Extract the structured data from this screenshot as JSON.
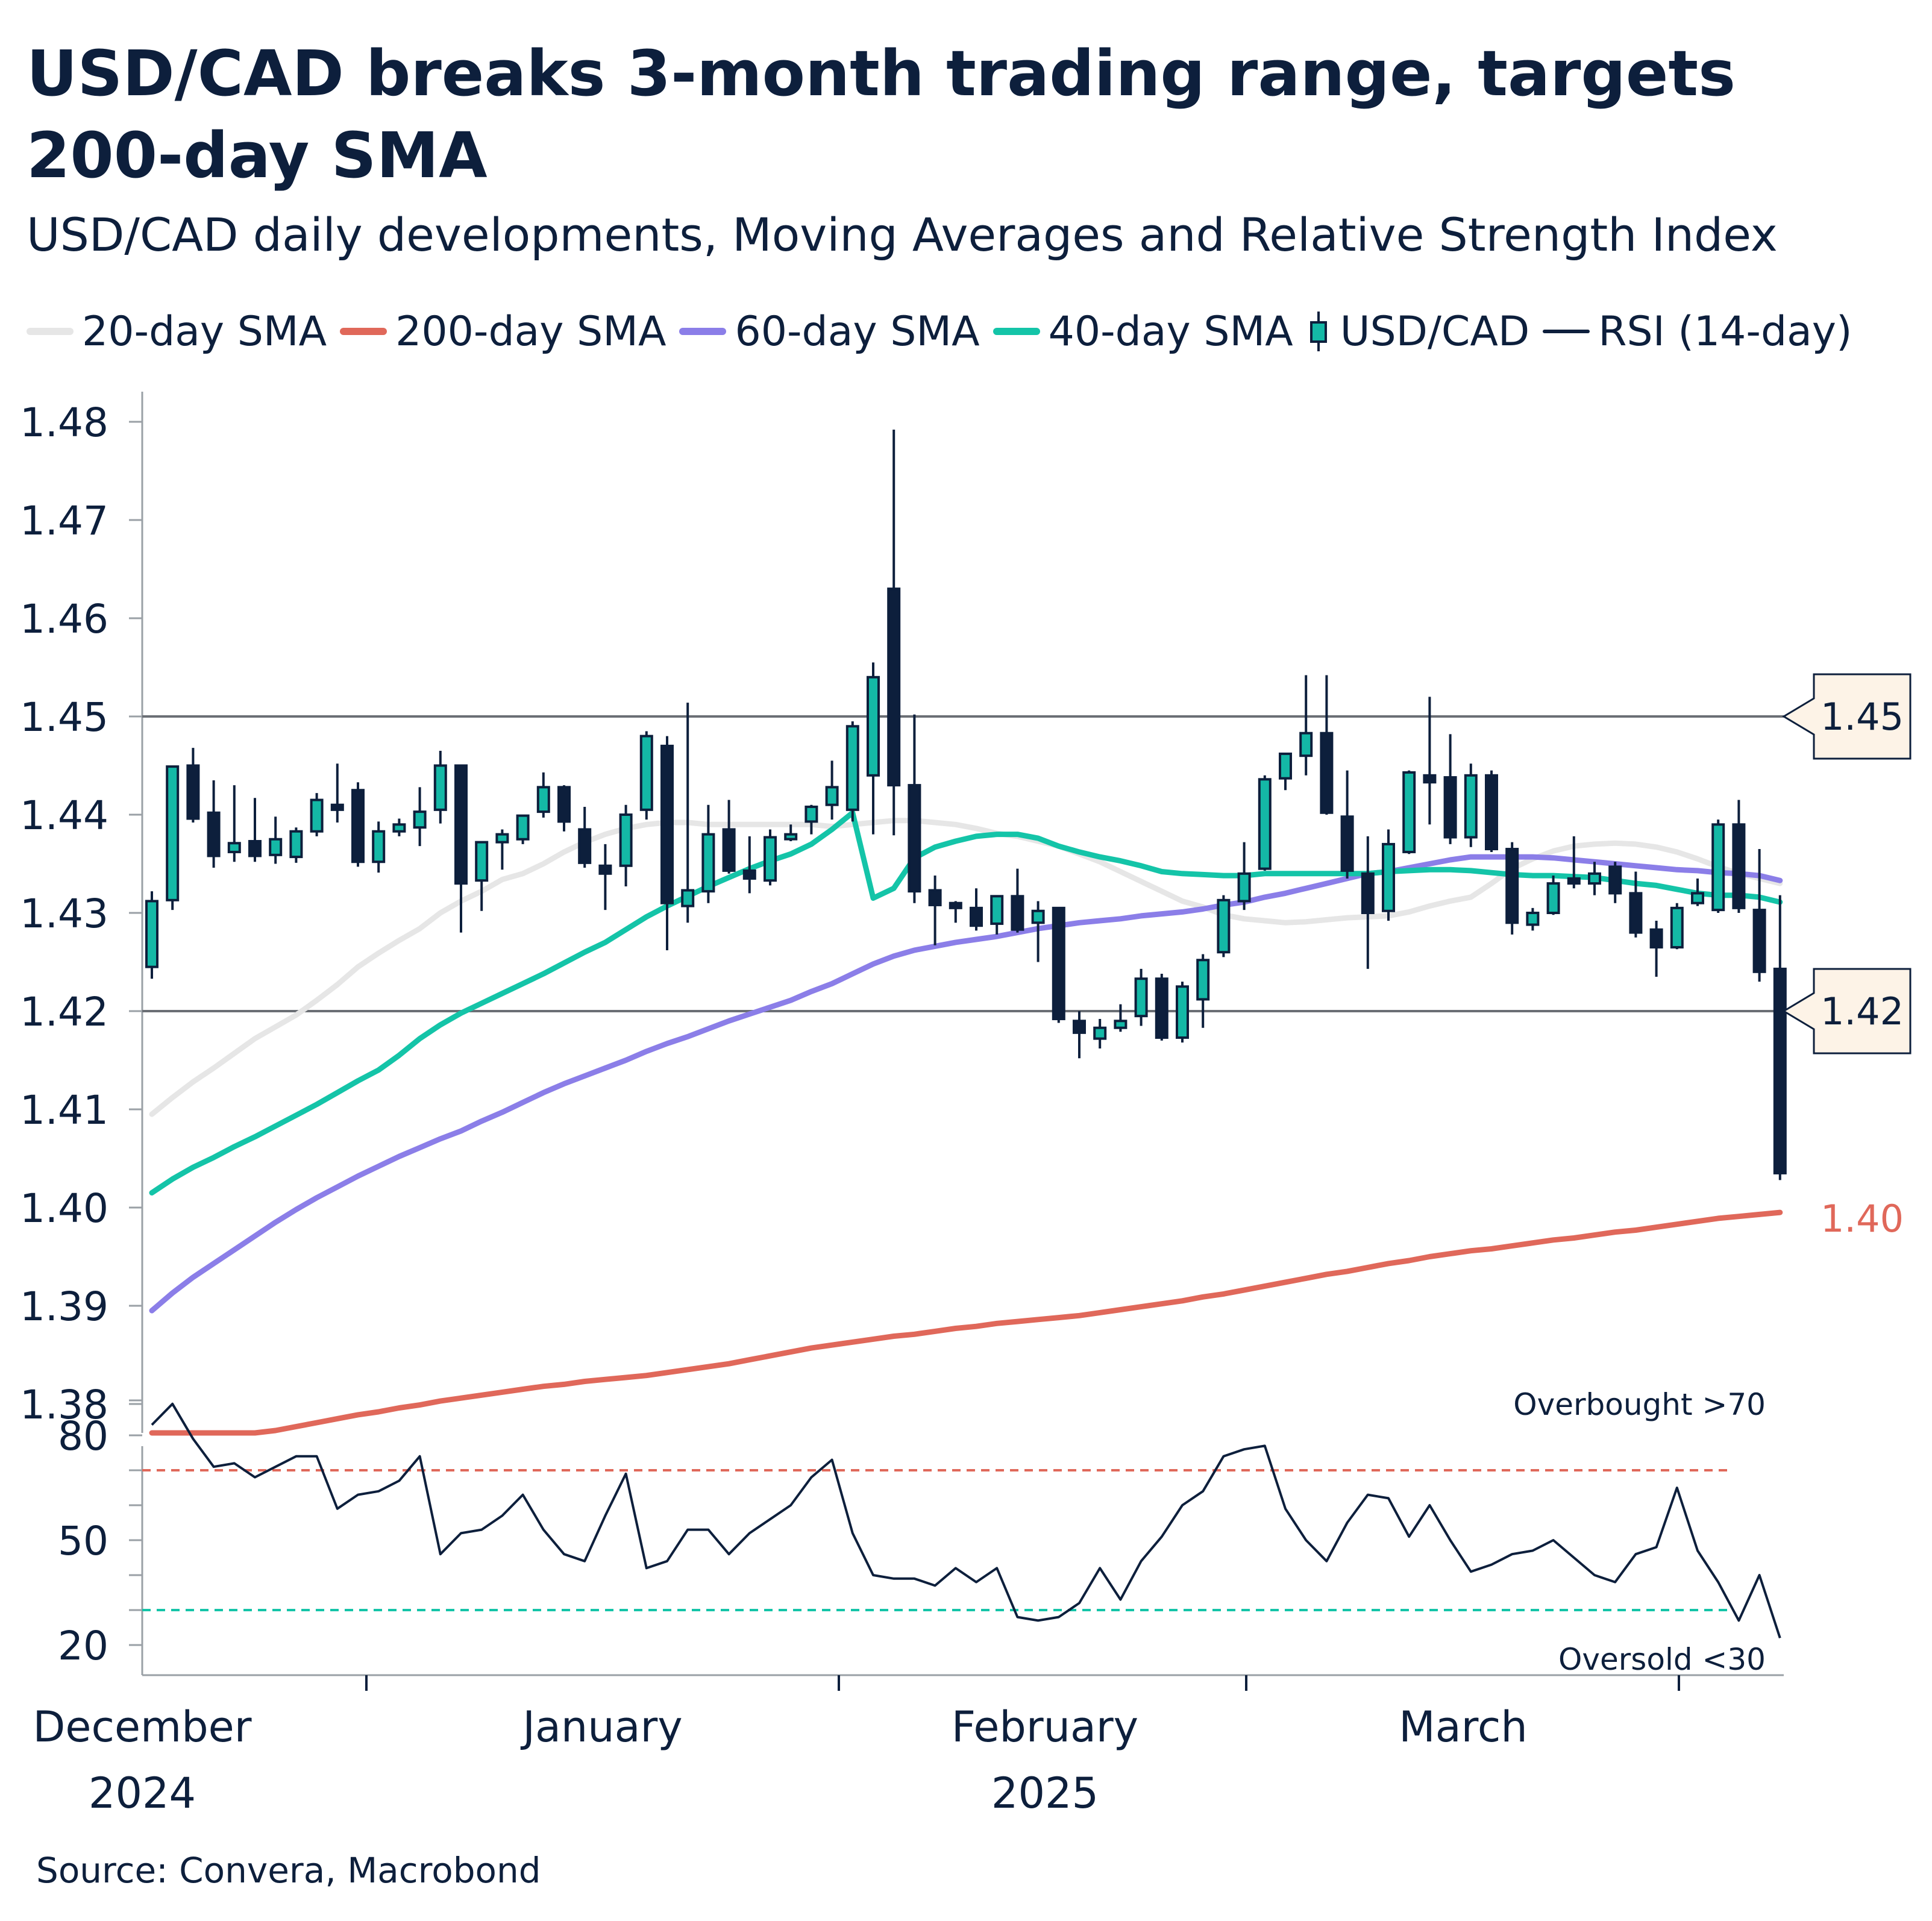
{
  "title": "USD/CAD breaks 3-month trading range, targets 200-day SMA",
  "subtitle": "USD/CAD daily developments, Moving Averages and Relative Strength Index",
  "source": "Source: Convera, Macrobond",
  "legend": [
    {
      "label": "20-day SMA",
      "color": "#e6e6e6",
      "kind": "line"
    },
    {
      "label": "200-day SMA",
      "color": "#e0685a",
      "kind": "line"
    },
    {
      "label": "60-day SMA",
      "color": "#8b7ee8",
      "kind": "line"
    },
    {
      "label": "40-day SMA",
      "color": "#14c4a8",
      "kind": "line"
    },
    {
      "label": "USD/CAD",
      "color": "#14b8a6",
      "kind": "candle"
    },
    {
      "label": "RSI (14-day)",
      "color": "#0d1f3c",
      "kind": "line"
    }
  ],
  "chart_data": [
    {
      "type": "candlestick",
      "title": "USD/CAD daily developments, Moving Averages and Relative Strength Index",
      "ylim": [
        1.376,
        1.484
      ],
      "yticks": [
        "1.38",
        "1.39",
        "1.40",
        "1.41",
        "1.42",
        "1.43",
        "1.44",
        "1.45",
        "1.46",
        "1.47",
        "1.48"
      ],
      "reference_lines": [
        {
          "value": 1.45,
          "label": "1.45"
        },
        {
          "value": 1.42,
          "label": "1.42"
        }
      ],
      "end_label": {
        "value": 1.399,
        "label": "1.40",
        "series": "200-day SMA"
      },
      "x_labels": [
        {
          "month": "December",
          "year": "2024"
        },
        {
          "month": "January",
          "year": ""
        },
        {
          "month": "February",
          "year": "2025"
        },
        {
          "month": "March",
          "year": ""
        }
      ],
      "candles": [
        {
          "o": 1.4245,
          "h": 1.4322,
          "l": 1.4233,
          "c": 1.4312
        },
        {
          "o": 1.4313,
          "h": 1.445,
          "l": 1.4303,
          "c": 1.4449
        },
        {
          "o": 1.445,
          "h": 1.4468,
          "l": 1.4392,
          "c": 1.4396
        },
        {
          "o": 1.4402,
          "h": 1.4435,
          "l": 1.4346,
          "c": 1.4358
        },
        {
          "o": 1.4362,
          "h": 1.443,
          "l": 1.4352,
          "c": 1.4371
        },
        {
          "o": 1.4373,
          "h": 1.4417,
          "l": 1.4352,
          "c": 1.4358
        },
        {
          "o": 1.4359,
          "h": 1.4398,
          "l": 1.435,
          "c": 1.4375
        },
        {
          "o": 1.4357,
          "h": 1.4387,
          "l": 1.4351,
          "c": 1.4383
        },
        {
          "o": 1.4383,
          "h": 1.4422,
          "l": 1.4378,
          "c": 1.4415
        },
        {
          "o": 1.441,
          "h": 1.4452,
          "l": 1.4392,
          "c": 1.4405
        },
        {
          "o": 1.4425,
          "h": 1.4433,
          "l": 1.4347,
          "c": 1.4352
        },
        {
          "o": 1.4352,
          "h": 1.4393,
          "l": 1.4341,
          "c": 1.4383
        },
        {
          "o": 1.4383,
          "h": 1.4396,
          "l": 1.4378,
          "c": 1.439
        },
        {
          "o": 1.4387,
          "h": 1.4428,
          "l": 1.4368,
          "c": 1.4403
        },
        {
          "o": 1.4405,
          "h": 1.4465,
          "l": 1.4391,
          "c": 1.445
        },
        {
          "o": 1.445,
          "h": 1.445,
          "l": 1.428,
          "c": 1.433
        },
        {
          "o": 1.4333,
          "h": 1.4372,
          "l": 1.4302,
          "c": 1.4372
        },
        {
          "o": 1.4372,
          "h": 1.4385,
          "l": 1.4344,
          "c": 1.438
        },
        {
          "o": 1.4375,
          "h": 1.44,
          "l": 1.437,
          "c": 1.4399
        },
        {
          "o": 1.4403,
          "h": 1.4443,
          "l": 1.4397,
          "c": 1.4428
        },
        {
          "o": 1.4428,
          "h": 1.443,
          "l": 1.4383,
          "c": 1.4393
        },
        {
          "o": 1.4385,
          "h": 1.4408,
          "l": 1.4346,
          "c": 1.4351
        },
        {
          "o": 1.4348,
          "h": 1.437,
          "l": 1.4303,
          "c": 1.434
        },
        {
          "o": 1.4348,
          "h": 1.441,
          "l": 1.4327,
          "c": 1.44
        },
        {
          "o": 1.4405,
          "h": 1.4485,
          "l": 1.4395,
          "c": 1.448
        },
        {
          "o": 1.447,
          "h": 1.448,
          "l": 1.4262,
          "c": 1.431
        },
        {
          "o": 1.4307,
          "h": 1.4514,
          "l": 1.429,
          "c": 1.4323
        },
        {
          "o": 1.4322,
          "h": 1.441,
          "l": 1.431,
          "c": 1.438
        },
        {
          "o": 1.4385,
          "h": 1.4415,
          "l": 1.434,
          "c": 1.4343
        },
        {
          "o": 1.4343,
          "h": 1.4378,
          "l": 1.432,
          "c": 1.4335
        },
        {
          "o": 1.4333,
          "h": 1.4385,
          "l": 1.4328,
          "c": 1.4377
        },
        {
          "o": 1.438,
          "h": 1.439,
          "l": 1.4373,
          "c": 1.438
        },
        {
          "o": 1.4393,
          "h": 1.441,
          "l": 1.438,
          "c": 1.4408
        },
        {
          "o": 1.441,
          "h": 1.4455,
          "l": 1.4395,
          "c": 1.4428
        },
        {
          "o": 1.4405,
          "h": 1.4495,
          "l": 1.4393,
          "c": 1.449
        },
        {
          "o": 1.444,
          "h": 1.4555,
          "l": 1.438,
          "c": 1.454
        },
        {
          "o": 1.463,
          "h": 1.4792,
          "l": 1.4379,
          "c": 1.443
        },
        {
          "o": 1.443,
          "h": 1.4502,
          "l": 1.431,
          "c": 1.4322
        },
        {
          "o": 1.4323,
          "h": 1.4338,
          "l": 1.4267,
          "c": 1.4308
        },
        {
          "o": 1.431,
          "h": 1.4312,
          "l": 1.429,
          "c": 1.4305
        },
        {
          "o": 1.4305,
          "h": 1.4325,
          "l": 1.4282,
          "c": 1.4287
        },
        {
          "o": 1.4289,
          "h": 1.4318,
          "l": 1.4278,
          "c": 1.4317
        },
        {
          "o": 1.4317,
          "h": 1.4345,
          "l": 1.428,
          "c": 1.4283
        },
        {
          "o": 1.429,
          "h": 1.4312,
          "l": 1.425,
          "c": 1.4302
        },
        {
          "o": 1.4305,
          "h": 1.4305,
          "l": 1.4188,
          "c": 1.4192
        },
        {
          "o": 1.419,
          "h": 1.42,
          "l": 1.4152,
          "c": 1.4178
        },
        {
          "o": 1.4172,
          "h": 1.4192,
          "l": 1.4162,
          "c": 1.4183
        },
        {
          "o": 1.4183,
          "h": 1.4207,
          "l": 1.4179,
          "c": 1.419
        },
        {
          "o": 1.4195,
          "h": 1.4243,
          "l": 1.4185,
          "c": 1.4233
        },
        {
          "o": 1.4233,
          "h": 1.4238,
          "l": 1.417,
          "c": 1.4173
        },
        {
          "o": 1.4173,
          "h": 1.423,
          "l": 1.4168,
          "c": 1.4225
        },
        {
          "o": 1.4212,
          "h": 1.4258,
          "l": 1.4183,
          "c": 1.4252
        },
        {
          "o": 1.426,
          "h": 1.4318,
          "l": 1.4255,
          "c": 1.4313
        },
        {
          "o": 1.4312,
          "h": 1.4372,
          "l": 1.4303,
          "c": 1.434
        },
        {
          "o": 1.4345,
          "h": 1.444,
          "l": 1.4343,
          "c": 1.4436
        },
        {
          "o": 1.4437,
          "h": 1.4462,
          "l": 1.4425,
          "c": 1.4462
        },
        {
          "o": 1.446,
          "h": 1.4542,
          "l": 1.444,
          "c": 1.4483
        },
        {
          "o": 1.4483,
          "h": 1.4542,
          "l": 1.44,
          "c": 1.4402
        },
        {
          "o": 1.4398,
          "h": 1.4445,
          "l": 1.4335,
          "c": 1.4343
        },
        {
          "o": 1.434,
          "h": 1.4378,
          "l": 1.4243,
          "c": 1.43
        },
        {
          "o": 1.4302,
          "h": 1.4385,
          "l": 1.4292,
          "c": 1.437
        },
        {
          "o": 1.4362,
          "h": 1.4445,
          "l": 1.436,
          "c": 1.4443
        },
        {
          "o": 1.444,
          "h": 1.452,
          "l": 1.439,
          "c": 1.4433
        },
        {
          "o": 1.4438,
          "h": 1.4482,
          "l": 1.437,
          "c": 1.4377
        },
        {
          "o": 1.4377,
          "h": 1.4452,
          "l": 1.4367,
          "c": 1.444
        },
        {
          "o": 1.444,
          "h": 1.4445,
          "l": 1.4362,
          "c": 1.4365
        },
        {
          "o": 1.4365,
          "h": 1.4372,
          "l": 1.4278,
          "c": 1.429
        },
        {
          "o": 1.4288,
          "h": 1.4305,
          "l": 1.4282,
          "c": 1.43
        },
        {
          "o": 1.43,
          "h": 1.4338,
          "l": 1.4298,
          "c": 1.433
        },
        {
          "o": 1.4335,
          "h": 1.4378,
          "l": 1.4325,
          "c": 1.433
        },
        {
          "o": 1.433,
          "h": 1.4352,
          "l": 1.4318,
          "c": 1.434
        },
        {
          "o": 1.4347,
          "h": 1.4352,
          "l": 1.431,
          "c": 1.432
        },
        {
          "o": 1.432,
          "h": 1.4342,
          "l": 1.4275,
          "c": 1.428
        },
        {
          "o": 1.4283,
          "h": 1.4292,
          "l": 1.4235,
          "c": 1.4265
        },
        {
          "o": 1.4265,
          "h": 1.431,
          "l": 1.4263,
          "c": 1.4305
        },
        {
          "o": 1.431,
          "h": 1.4335,
          "l": 1.4307,
          "c": 1.432
        },
        {
          "o": 1.4303,
          "h": 1.4395,
          "l": 1.43,
          "c": 1.439
        },
        {
          "o": 1.439,
          "h": 1.4415,
          "l": 1.43,
          "c": 1.4305
        },
        {
          "o": 1.4303,
          "h": 1.4365,
          "l": 1.423,
          "c": 1.424
        },
        {
          "o": 1.4243,
          "h": 1.4318,
          "l": 1.4028,
          "c": 1.4035
        }
      ],
      "series": [
        {
          "name": "20-day SMA",
          "color": "#e6e6e6",
          "values": [
            1.4095,
            1.4112,
            1.4128,
            1.4142,
            1.4157,
            1.4172,
            1.4184,
            1.4196,
            1.4211,
            1.4227,
            1.4245,
            1.4259,
            1.4272,
            1.4284,
            1.43,
            1.4312,
            1.4322,
            1.4334,
            1.434,
            1.435,
            1.4362,
            1.4372,
            1.438,
            1.4386,
            1.439,
            1.4392,
            1.4392,
            1.439,
            1.439,
            1.439,
            1.439,
            1.439,
            1.439,
            1.4388,
            1.439,
            1.4392,
            1.4394,
            1.4394,
            1.4392,
            1.439,
            1.4386,
            1.4381,
            1.4378,
            1.4373,
            1.4368,
            1.436,
            1.4352,
            1.4342,
            1.4332,
            1.4322,
            1.4312,
            1.4306,
            1.4298,
            1.4294,
            1.4292,
            1.429,
            1.4291,
            1.4293,
            1.4295,
            1.4296,
            1.4297,
            1.4301,
            1.4307,
            1.4312,
            1.4316,
            1.433,
            1.4345,
            1.4355,
            1.4363,
            1.4368,
            1.437,
            1.4371,
            1.437,
            1.4367,
            1.4362,
            1.4355,
            1.4347,
            1.434,
            1.4335,
            1.433
          ]
        },
        {
          "name": "40-day SMA",
          "color": "#14c4a8",
          "values": [
            1.4015,
            1.4029,
            1.4041,
            1.4051,
            1.4062,
            1.4072,
            1.4083,
            1.4094,
            1.4105,
            1.4117,
            1.4129,
            1.414,
            1.4155,
            1.4172,
            1.4186,
            1.4198,
            1.4208,
            1.4218,
            1.4228,
            1.4238,
            1.4249,
            1.426,
            1.427,
            1.4283,
            1.4296,
            1.4307,
            1.4317,
            1.4327,
            1.4336,
            1.4345,
            1.4353,
            1.436,
            1.437,
            1.4385,
            1.4402,
            1.4315,
            1.4325,
            1.4356,
            1.4367,
            1.4373,
            1.4378,
            1.438,
            1.438,
            1.4376,
            1.4368,
            1.4362,
            1.4357,
            1.4353,
            1.4348,
            1.4342,
            1.434,
            1.4339,
            1.4338,
            1.4338,
            1.434,
            1.434,
            1.434,
            1.434,
            1.434,
            1.434,
            1.4342,
            1.4343,
            1.4344,
            1.4344,
            1.4343,
            1.4341,
            1.4339,
            1.4338,
            1.4338,
            1.4337,
            1.4336,
            1.4333,
            1.433,
            1.4328,
            1.4324,
            1.432,
            1.4318,
            1.4318,
            1.4316,
            1.4311
          ]
        },
        {
          "name": "60-day SMA",
          "color": "#8b7ee8",
          "values": [
            1.3895,
            1.3913,
            1.3929,
            1.3943,
            1.3957,
            1.3971,
            1.3985,
            1.3998,
            1.401,
            1.4021,
            1.4032,
            1.4042,
            1.4052,
            1.4061,
            1.407,
            1.4078,
            1.4088,
            1.4097,
            1.4107,
            1.4117,
            1.4126,
            1.4134,
            1.4142,
            1.415,
            1.4159,
            1.4167,
            1.4174,
            1.4182,
            1.419,
            1.4197,
            1.4204,
            1.4211,
            1.422,
            1.4228,
            1.4238,
            1.4248,
            1.4256,
            1.4262,
            1.4266,
            1.427,
            1.4273,
            1.4276,
            1.428,
            1.4284,
            1.4287,
            1.429,
            1.4292,
            1.4294,
            1.4297,
            1.4299,
            1.4301,
            1.4304,
            1.4308,
            1.4311,
            1.4316,
            1.432,
            1.4325,
            1.433,
            1.4335,
            1.434,
            1.4342,
            1.4346,
            1.435,
            1.4354,
            1.4357,
            1.4357,
            1.4357,
            1.4357,
            1.4356,
            1.4354,
            1.4352,
            1.435,
            1.4348,
            1.4346,
            1.4344,
            1.4343,
            1.4341,
            1.434,
            1.4338,
            1.4333
          ]
        },
        {
          "name": "200-day SMA",
          "color": "#e0685a",
          "values": [
            1.3748,
            1.3753,
            1.3757,
            1.3761,
            1.3765,
            1.3769,
            1.3773,
            1.3777,
            1.3781,
            1.3785,
            1.3789,
            1.3792,
            1.3796,
            1.3799,
            1.3803,
            1.3806,
            1.3809,
            1.3812,
            1.3815,
            1.3818,
            1.382,
            1.3823,
            1.3825,
            1.3827,
            1.3829,
            1.3832,
            1.3835,
            1.3838,
            1.3841,
            1.3845,
            1.3849,
            1.3853,
            1.3857,
            1.386,
            1.3863,
            1.3866,
            1.3869,
            1.3871,
            1.3874,
            1.3877,
            1.3879,
            1.3882,
            1.3884,
            1.3886,
            1.3888,
            1.389,
            1.3893,
            1.3896,
            1.3899,
            1.3902,
            1.3905,
            1.3909,
            1.3912,
            1.3916,
            1.392,
            1.3924,
            1.3928,
            1.3932,
            1.3935,
            1.3939,
            1.3943,
            1.3946,
            1.395,
            1.3953,
            1.3956,
            1.3958,
            1.3961,
            1.3964,
            1.3967,
            1.3969,
            1.3972,
            1.3975,
            1.3977,
            1.398,
            1.3983,
            1.3986,
            1.3989,
            1.3991,
            1.3993,
            1.3995
          ]
        }
      ]
    },
    {
      "type": "line",
      "title": "RSI (14-day)",
      "ylim": [
        10,
        95
      ],
      "yticks": [
        "20",
        "50",
        "80"
      ],
      "thresholds": [
        {
          "value": 70,
          "label": "Overbought >70",
          "color": "#e0685a"
        },
        {
          "value": 30,
          "label": "Oversold <30",
          "color": "#14c4a8"
        }
      ],
      "series": [
        {
          "name": "RSI (14-day)",
          "color": "#0d1f3c",
          "values": [
            83,
            89,
            79,
            71,
            72,
            68,
            71,
            74,
            74,
            59,
            63,
            64,
            67,
            74,
            46,
            52,
            53,
            57,
            63,
            53,
            46,
            44,
            57,
            69,
            42,
            44,
            53,
            53,
            46,
            52,
            56,
            60,
            68,
            73,
            52,
            40,
            39,
            39,
            37,
            42,
            38,
            42,
            28,
            27,
            28,
            32,
            42,
            33,
            44,
            51,
            60,
            64,
            74,
            76,
            77,
            59,
            50,
            44,
            55,
            63,
            62,
            51,
            60,
            50,
            41,
            43,
            46,
            47,
            50,
            45,
            40,
            38,
            46,
            48,
            65,
            47,
            38,
            27,
            40,
            22
          ]
        }
      ]
    }
  ]
}
